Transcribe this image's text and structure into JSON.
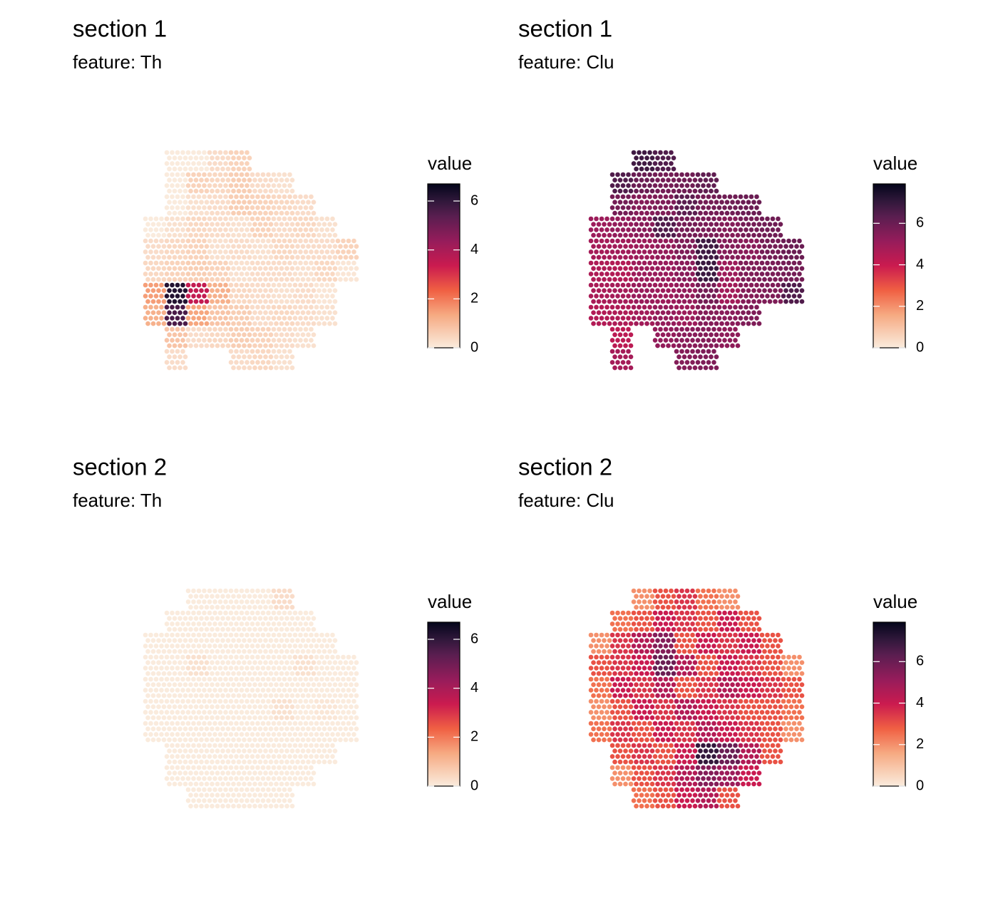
{
  "chart_data": [
    {
      "type": "spatial",
      "title": "section 1",
      "subtitle": "feature:  Th",
      "legend_title": "value",
      "clim": [
        0,
        6.7
      ],
      "cticks": [
        0,
        2,
        4,
        6
      ],
      "grid": [
        [
          null,
          0,
          0,
          0.3,
          0.5,
          null,
          null,
          null,
          null,
          null
        ],
        [
          null,
          0,
          0.5,
          0.4,
          0.6,
          0.3,
          0.2,
          null,
          null,
          null
        ],
        [
          null,
          0,
          0.2,
          0.3,
          0.6,
          0.5,
          0.4,
          0.3,
          null,
          null
        ],
        [
          0,
          0.2,
          0.4,
          0.3,
          0.2,
          0.5,
          0.3,
          0.4,
          0.2,
          null
        ],
        [
          0.3,
          0.4,
          0.5,
          0.2,
          0.3,
          0.2,
          0.4,
          0.3,
          0.3,
          0.5
        ],
        [
          0.4,
          0.5,
          0.6,
          0.5,
          0.2,
          0.3,
          0.3,
          0.2,
          0.4,
          0.1
        ],
        [
          1.5,
          6.2,
          3.5,
          1.2,
          0.4,
          0.3,
          0.2,
          0.3,
          0.1,
          null
        ],
        [
          1.2,
          5.6,
          1.4,
          0.8,
          0.6,
          0.3,
          0.4,
          0.3,
          0.2,
          null
        ],
        [
          null,
          0.8,
          0.3,
          0.4,
          0.6,
          0.5,
          0.3,
          0.2,
          null,
          null
        ],
        [
          null,
          0.3,
          null,
          null,
          0.3,
          0.4,
          0.2,
          null,
          null,
          null
        ]
      ]
    },
    {
      "type": "spatial",
      "title": "section 1",
      "subtitle": "feature:  Clu",
      "legend_title": "value",
      "clim": [
        0,
        7.9
      ],
      "cticks": [
        0,
        2,
        4,
        6
      ],
      "grid": [
        [
          null,
          null,
          6.8,
          6.5,
          null,
          null,
          null,
          null,
          null,
          null
        ],
        [
          null,
          6.5,
          6,
          5.8,
          5.9,
          6.2,
          null,
          null,
          null,
          null
        ],
        [
          null,
          5.8,
          5.5,
          5.6,
          6.3,
          5.8,
          5.9,
          6,
          null,
          null
        ],
        [
          5,
          5.2,
          5.4,
          6.5,
          5.8,
          5.7,
          5.5,
          5.8,
          5.9,
          null
        ],
        [
          4.8,
          4.9,
          5,
          5.2,
          5.6,
          6.8,
          5.5,
          5.4,
          5.8,
          6
        ],
        [
          4.6,
          4.5,
          5,
          5.1,
          5.4,
          6.9,
          5,
          5.6,
          5.7,
          5.8
        ],
        [
          4.7,
          4.8,
          5.1,
          5,
          5.2,
          5.8,
          4.9,
          5.5,
          5.6,
          6.5
        ],
        [
          4.5,
          4.6,
          4.9,
          5.2,
          5,
          5.5,
          5.4,
          5.6,
          null,
          null
        ],
        [
          null,
          4.3,
          null,
          5.2,
          5.4,
          5.5,
          5.3,
          null,
          null,
          null
        ],
        [
          null,
          4.8,
          null,
          null,
          5.5,
          5.6,
          null,
          null,
          null,
          null
        ]
      ]
    },
    {
      "type": "spatial",
      "title": "section 2",
      "subtitle": "feature:  Th",
      "legend_title": "value",
      "clim": [
        0,
        6.7
      ],
      "cticks": [
        0,
        2,
        4,
        6
      ],
      "grid": [
        [
          null,
          null,
          0,
          0,
          0,
          0,
          0.3,
          null,
          null,
          null
        ],
        [
          null,
          0,
          0,
          0,
          0,
          0,
          0,
          0,
          null,
          null
        ],
        [
          0,
          0,
          0,
          0,
          0,
          0,
          0,
          0,
          0,
          null
        ],
        [
          0,
          0,
          0.2,
          0,
          0,
          0,
          0,
          0.2,
          0,
          0
        ],
        [
          0,
          0,
          0,
          0,
          0,
          0,
          0,
          0,
          0,
          0
        ],
        [
          0,
          0,
          0,
          0,
          0,
          0,
          0.2,
          0,
          0.1,
          0
        ],
        [
          0,
          0,
          0,
          0,
          0,
          0,
          0,
          0,
          0,
          0
        ],
        [
          null,
          0,
          0,
          0,
          0,
          0,
          0,
          0,
          0,
          null
        ],
        [
          null,
          0,
          0,
          0,
          0,
          0,
          0,
          0,
          null,
          null
        ],
        [
          null,
          null,
          0,
          0,
          0,
          0,
          0,
          null,
          null,
          null
        ]
      ]
    },
    {
      "type": "spatial",
      "title": "section 2",
      "subtitle": "feature:  Clu",
      "legend_title": "value",
      "clim": [
        0,
        7.9
      ],
      "cticks": [
        0,
        2,
        4,
        6
      ],
      "grid": [
        [
          null,
          null,
          2,
          3,
          3.5,
          2.5,
          2,
          null,
          null,
          null
        ],
        [
          null,
          2.5,
          3,
          4,
          3.5,
          3,
          4,
          3,
          null,
          null
        ],
        [
          2,
          3.5,
          4.5,
          5.5,
          3,
          4,
          3.5,
          4,
          3,
          null
        ],
        [
          3,
          3.5,
          4,
          6,
          4.5,
          3,
          4,
          3.5,
          3,
          2
        ],
        [
          2.5,
          4,
          3.5,
          4.5,
          3,
          3.5,
          4.5,
          4,
          3.5,
          3
        ],
        [
          2,
          3,
          4,
          3.5,
          4.5,
          4,
          3.5,
          3,
          3,
          2.5
        ],
        [
          2.5,
          3.5,
          3,
          4,
          3.5,
          4.5,
          4,
          3.5,
          3,
          2
        ],
        [
          null,
          3,
          3.5,
          3,
          4,
          7,
          6,
          4.5,
          3,
          null
        ],
        [
          null,
          2,
          3,
          3.5,
          4.5,
          5.5,
          5,
          4,
          null,
          null
        ],
        [
          null,
          null,
          2.5,
          3,
          4,
          4.5,
          3,
          null,
          null,
          null
        ]
      ]
    }
  ]
}
